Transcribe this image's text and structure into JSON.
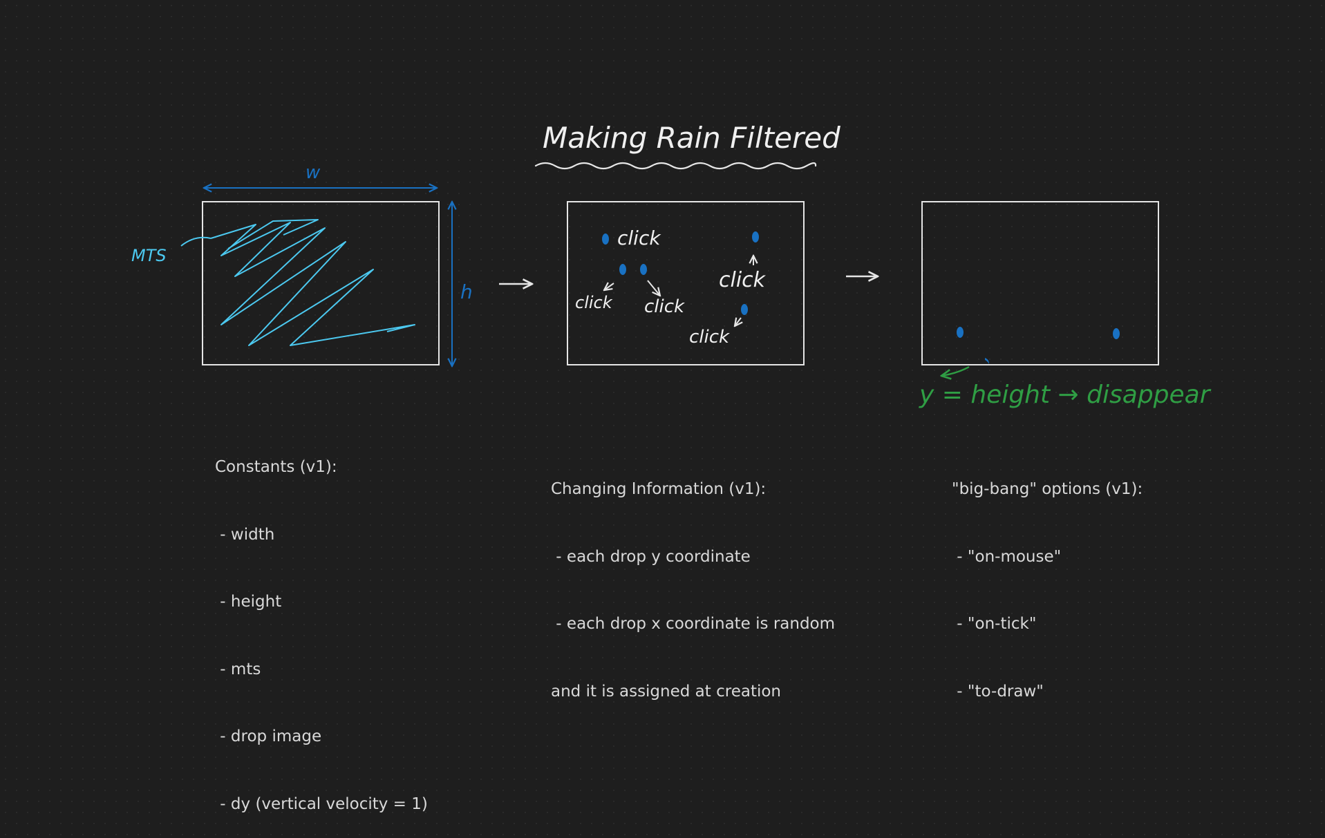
{
  "title": "Making Rain Filtered",
  "panel1": {
    "width_label": "w",
    "height_label": "h",
    "mts_label": "MTS"
  },
  "panel2": {
    "click_labels": [
      "click",
      "click",
      "click",
      "click",
      "click"
    ]
  },
  "panel3": {
    "annotation": "y = height  → disappear"
  },
  "notes": {
    "constants": {
      "heading": "Constants (v1):",
      "items": [
        " - width",
        " - height",
        " - mts",
        " - drop image",
        " - dy (vertical velocity = 1)"
      ]
    },
    "changing": {
      "heading": "Changing Information (v1):",
      "items": [
        " - each drop y coordinate",
        " - each drop x coordinate is random",
        "and it is assigned at creation"
      ]
    },
    "bigbang": {
      "heading": "\"big-bang\" options (v1):",
      "items": [
        " - \"on-mouse\"",
        " - \"on-tick\"",
        " - \"to-draw\""
      ]
    }
  },
  "colors": {
    "stroke": "#e6e6e6",
    "blue": "#1971c2",
    "cyan": "#4cc9f0",
    "green": "#2f9e44"
  }
}
